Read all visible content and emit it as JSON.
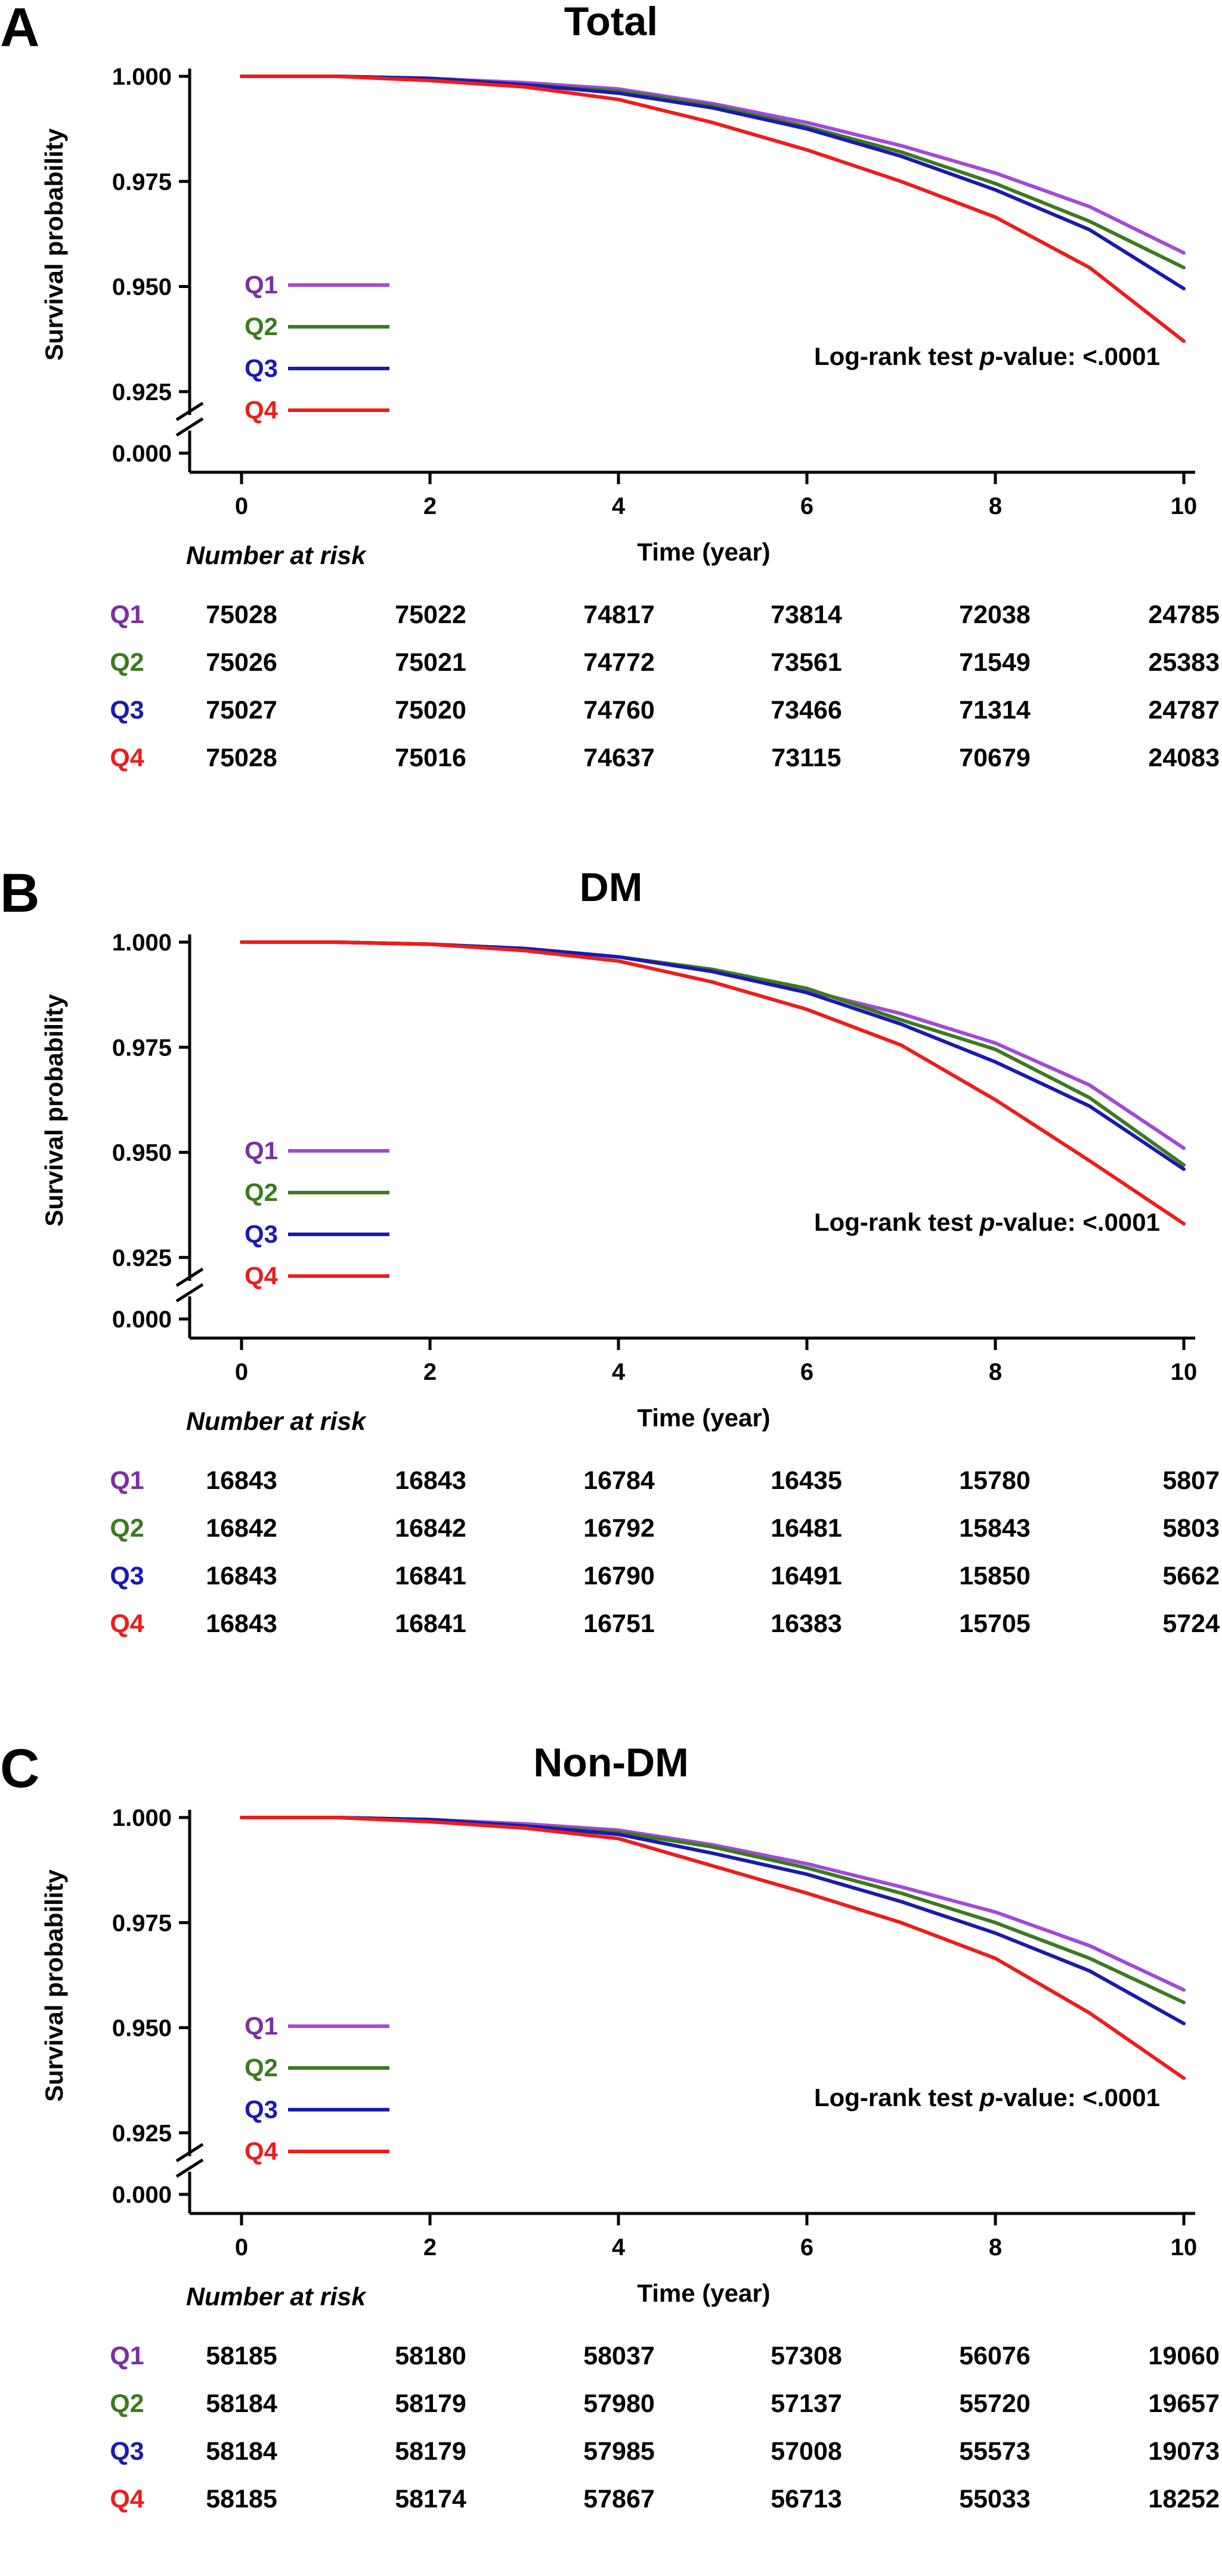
{
  "chart_data": [
    {
      "type": "line",
      "panel_label": "A",
      "title": "Total",
      "xlabel": "Time (year)",
      "ylabel": "Survival probability",
      "xlim": [
        0,
        10
      ],
      "ylim": [
        0.92,
        1.0
      ],
      "x_ticks": [
        0,
        2,
        4,
        6,
        8,
        10
      ],
      "y_ticks": [
        "1.000",
        "0.975",
        "0.950",
        "0.925",
        "0.000"
      ],
      "axis_break": true,
      "annotation": {
        "prefix": "Log-rank test ",
        "italic": "p",
        "suffix": "-value: <.0001"
      },
      "x": [
        0,
        1,
        2,
        3,
        4,
        5,
        6,
        7,
        8,
        9,
        10
      ],
      "series": [
        {
          "name": "Q1",
          "color": "#a349d9",
          "values": [
            1.0,
            1.0,
            0.9995,
            0.9985,
            0.997,
            0.9935,
            0.989,
            0.9835,
            0.977,
            0.969,
            0.958
          ]
        },
        {
          "name": "Q2",
          "color": "#3d7a1f",
          "values": [
            1.0,
            1.0,
            0.9995,
            0.998,
            0.9965,
            0.993,
            0.988,
            0.982,
            0.9745,
            0.9655,
            0.9545
          ]
        },
        {
          "name": "Q3",
          "color": "#1a1aaf",
          "values": [
            1.0,
            1.0,
            0.9995,
            0.998,
            0.996,
            0.9925,
            0.9875,
            0.981,
            0.973,
            0.9635,
            0.9495
          ]
        },
        {
          "name": "Q4",
          "color": "#ee1c1c",
          "values": [
            1.0,
            1.0,
            0.999,
            0.9975,
            0.9945,
            0.989,
            0.9825,
            0.975,
            0.9665,
            0.9545,
            0.937
          ]
        }
      ],
      "risk_table": {
        "label": "Number at risk",
        "rows": [
          {
            "group": "Q1",
            "color": "#7b2fa0",
            "values": [
              "75028",
              "75022",
              "74817",
              "73814",
              "72038",
              "24785"
            ]
          },
          {
            "group": "Q2",
            "color": "#3d7a1f",
            "values": [
              "75026",
              "75021",
              "74772",
              "73561",
              "71549",
              "25383"
            ]
          },
          {
            "group": "Q3",
            "color": "#1a1aaf",
            "values": [
              "75027",
              "75020",
              "74760",
              "73466",
              "71314",
              "24787"
            ]
          },
          {
            "group": "Q4",
            "color": "#ee1c1c",
            "values": [
              "75028",
              "75016",
              "74637",
              "73115",
              "70679",
              "24083"
            ]
          }
        ]
      }
    },
    {
      "type": "line",
      "panel_label": "B",
      "title": "DM",
      "xlabel": "Time (year)",
      "ylabel": "Survival probability",
      "xlim": [
        0,
        10
      ],
      "ylim": [
        0.92,
        1.0
      ],
      "x_ticks": [
        0,
        2,
        4,
        6,
        8,
        10
      ],
      "y_ticks": [
        "1.000",
        "0.975",
        "0.950",
        "0.925",
        "0.000"
      ],
      "axis_break": true,
      "annotation": {
        "prefix": "Log-rank test ",
        "italic": "p",
        "suffix": "-value: <.0001"
      },
      "x": [
        0,
        1,
        2,
        3,
        4,
        5,
        6,
        7,
        8,
        9,
        10
      ],
      "series": [
        {
          "name": "Q1",
          "color": "#a349d9",
          "values": [
            1.0,
            1.0,
            0.9995,
            0.9985,
            0.9965,
            0.9935,
            0.9885,
            0.983,
            0.976,
            0.966,
            0.951
          ]
        },
        {
          "name": "Q2",
          "color": "#3d7a1f",
          "values": [
            1.0,
            1.0,
            0.9995,
            0.9985,
            0.9965,
            0.9935,
            0.989,
            0.9815,
            0.9745,
            0.963,
            0.947
          ]
        },
        {
          "name": "Q3",
          "color": "#1a1aaf",
          "values": [
            1.0,
            1.0,
            0.9995,
            0.9985,
            0.9965,
            0.993,
            0.988,
            0.9805,
            0.9715,
            0.961,
            0.946
          ]
        },
        {
          "name": "Q4",
          "color": "#ee1c1c",
          "values": [
            1.0,
            1.0,
            0.9995,
            0.998,
            0.9955,
            0.9905,
            0.984,
            0.9755,
            0.9625,
            0.948,
            0.933
          ]
        }
      ],
      "risk_table": {
        "label": "Number at risk",
        "rows": [
          {
            "group": "Q1",
            "color": "#7b2fa0",
            "values": [
              "16843",
              "16843",
              "16784",
              "16435",
              "15780",
              "5807"
            ]
          },
          {
            "group": "Q2",
            "color": "#3d7a1f",
            "values": [
              "16842",
              "16842",
              "16792",
              "16481",
              "15843",
              "5803"
            ]
          },
          {
            "group": "Q3",
            "color": "#1a1aaf",
            "values": [
              "16843",
              "16841",
              "16790",
              "16491",
              "15850",
              "5662"
            ]
          },
          {
            "group": "Q4",
            "color": "#ee1c1c",
            "values": [
              "16843",
              "16841",
              "16751",
              "16383",
              "15705",
              "5724"
            ]
          }
        ]
      }
    },
    {
      "type": "line",
      "panel_label": "C",
      "title": "Non-DM",
      "xlabel": "Time (year)",
      "ylabel": "Survival probability",
      "xlim": [
        0,
        10
      ],
      "ylim": [
        0.92,
        1.0
      ],
      "x_ticks": [
        0,
        2,
        4,
        6,
        8,
        10
      ],
      "y_ticks": [
        "1.000",
        "0.975",
        "0.950",
        "0.925",
        "0.000"
      ],
      "axis_break": true,
      "annotation": {
        "prefix": "Log-rank test ",
        "italic": "p",
        "suffix": "-value: <.0001"
      },
      "x": [
        0,
        1,
        2,
        3,
        4,
        5,
        6,
        7,
        8,
        9,
        10
      ],
      "series": [
        {
          "name": "Q1",
          "color": "#a349d9",
          "values": [
            1.0,
            1.0,
            0.9995,
            0.9985,
            0.997,
            0.9935,
            0.989,
            0.9835,
            0.9775,
            0.9695,
            0.959
          ]
        },
        {
          "name": "Q2",
          "color": "#3d7a1f",
          "values": [
            1.0,
            1.0,
            0.9995,
            0.998,
            0.9965,
            0.993,
            0.988,
            0.982,
            0.975,
            0.9665,
            0.956
          ]
        },
        {
          "name": "Q3",
          "color": "#1a1aaf",
          "values": [
            1.0,
            1.0,
            0.9995,
            0.998,
            0.996,
            0.9915,
            0.9865,
            0.98,
            0.9725,
            0.9635,
            0.951
          ]
        },
        {
          "name": "Q4",
          "color": "#ee1c1c",
          "values": [
            1.0,
            1.0,
            0.999,
            0.9975,
            0.995,
            0.9885,
            0.982,
            0.975,
            0.9665,
            0.9535,
            0.938
          ]
        }
      ],
      "risk_table": {
        "label": "Number at risk",
        "rows": [
          {
            "group": "Q1",
            "color": "#7b2fa0",
            "values": [
              "58185",
              "58180",
              "58037",
              "57308",
              "56076",
              "19060"
            ]
          },
          {
            "group": "Q2",
            "color": "#3d7a1f",
            "values": [
              "58184",
              "58179",
              "57980",
              "57137",
              "55720",
              "19657"
            ]
          },
          {
            "group": "Q3",
            "color": "#1a1aaf",
            "values": [
              "58184",
              "58179",
              "57985",
              "57008",
              "55573",
              "19073"
            ]
          },
          {
            "group": "Q4",
            "color": "#ee1c1c",
            "values": [
              "58185",
              "58174",
              "57867",
              "56713",
              "55033",
              "18252"
            ]
          }
        ]
      }
    }
  ]
}
